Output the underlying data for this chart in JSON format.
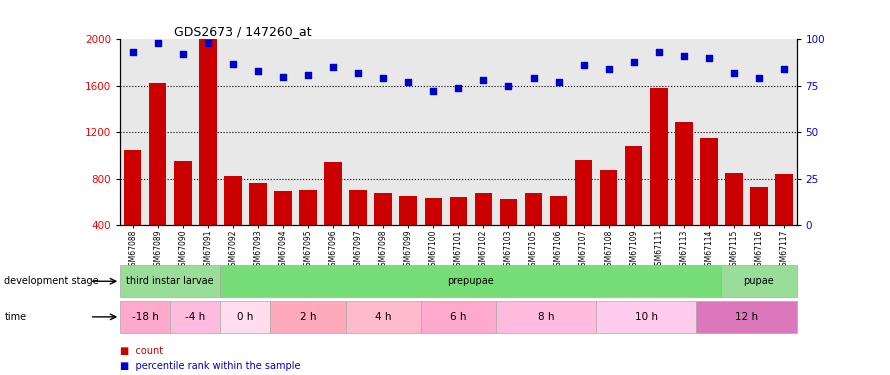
{
  "title": "GDS2673 / 147260_at",
  "samples": [
    "GSM67088",
    "GSM67089",
    "GSM67090",
    "GSM67091",
    "GSM67092",
    "GSM67093",
    "GSM67094",
    "GSM67095",
    "GSM67096",
    "GSM67097",
    "GSM67098",
    "GSM67099",
    "GSM67100",
    "GSM67101",
    "GSM67102",
    "GSM67103",
    "GSM67105",
    "GSM67106",
    "GSM67107",
    "GSM67108",
    "GSM67109",
    "GSM67111",
    "GSM67113",
    "GSM67114",
    "GSM67115",
    "GSM67116",
    "GSM67117"
  ],
  "counts": [
    1050,
    1620,
    950,
    2000,
    820,
    760,
    690,
    700,
    940,
    700,
    680,
    650,
    630,
    640,
    680,
    620,
    680,
    650,
    960,
    870,
    1080,
    1580,
    1290,
    1150,
    850,
    730,
    840
  ],
  "percentiles": [
    93,
    98,
    92,
    98,
    87,
    83,
    80,
    81,
    85,
    82,
    79,
    77,
    72,
    74,
    78,
    75,
    79,
    77,
    86,
    84,
    88,
    93,
    91,
    90,
    82,
    79,
    84
  ],
  "ylim_left": [
    400,
    2000
  ],
  "ylim_right": [
    0,
    100
  ],
  "yticks_left": [
    400,
    800,
    1200,
    1600,
    2000
  ],
  "yticks_right": [
    0,
    25,
    50,
    75,
    100
  ],
  "bar_color": "#cc0000",
  "dot_color": "#0000cc",
  "grid_color": "#000000",
  "dev_stages": [
    {
      "name": "third instar larvae",
      "start": 0,
      "end": 4,
      "color": "#99dd99"
    },
    {
      "name": "prepupae",
      "start": 4,
      "end": 24,
      "color": "#77dd77"
    },
    {
      "name": "pupae",
      "start": 24,
      "end": 27,
      "color": "#99dd99"
    }
  ],
  "time_slots": [
    {
      "name": "-18 h",
      "start": 0,
      "end": 2,
      "color": "#ffaacc"
    },
    {
      "name": "-4 h",
      "start": 2,
      "end": 4,
      "color": "#ffbbdd"
    },
    {
      "name": "0 h",
      "start": 4,
      "end": 6,
      "color": "#ffddee"
    },
    {
      "name": "2 h",
      "start": 6,
      "end": 9,
      "color": "#ffaabb"
    },
    {
      "name": "4 h",
      "start": 9,
      "end": 12,
      "color": "#ffbbcc"
    },
    {
      "name": "6 h",
      "start": 12,
      "end": 15,
      "color": "#ffaacc"
    },
    {
      "name": "8 h",
      "start": 15,
      "end": 19,
      "color": "#ffbbdd"
    },
    {
      "name": "10 h",
      "start": 19,
      "end": 23,
      "color": "#ffccee"
    },
    {
      "name": "12 h",
      "start": 23,
      "end": 27,
      "color": "#dd77bb"
    }
  ],
  "bg_color": "#ffffff",
  "axis_bg": "#e8e8e8",
  "legend_items": [
    {
      "label": "count",
      "color": "#cc0000"
    },
    {
      "label": "percentile rank within the sample",
      "color": "#0000cc"
    }
  ],
  "dev_label": "development stage",
  "time_label": "time"
}
